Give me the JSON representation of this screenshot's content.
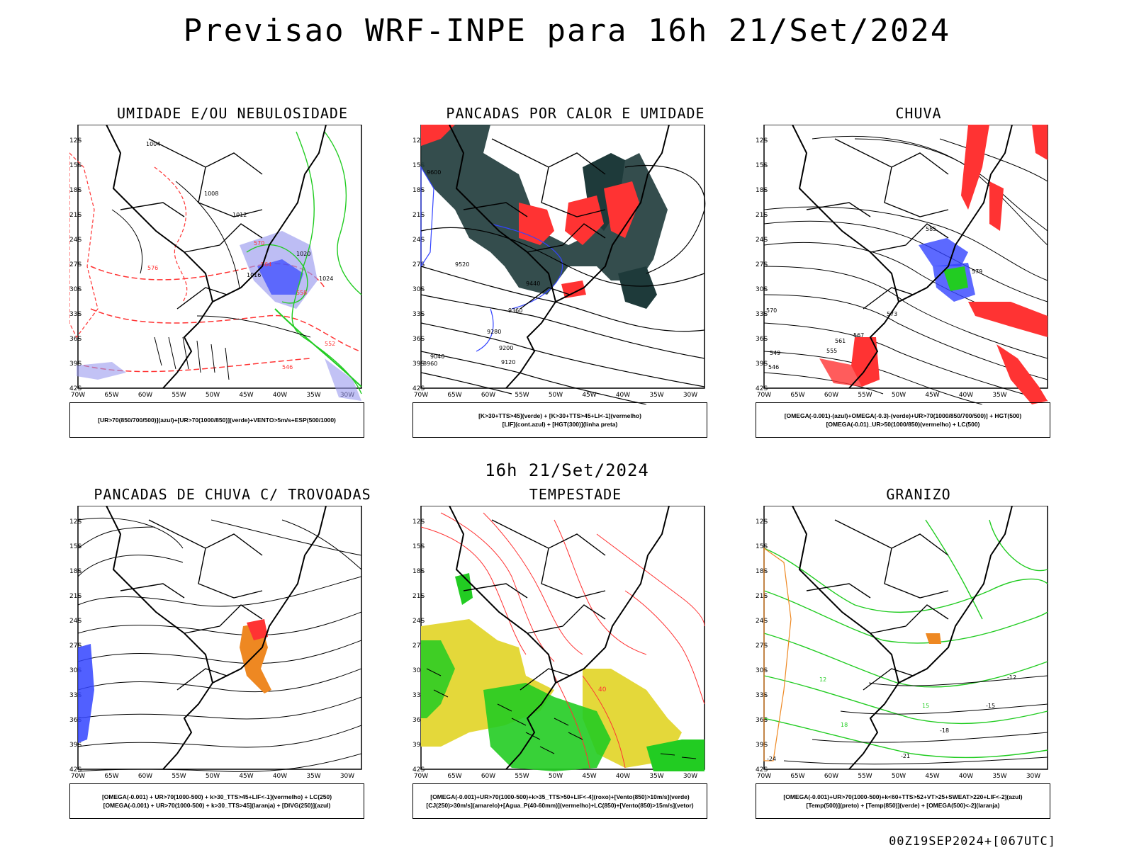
{
  "header": {
    "title": "Previsao WRF-INPE  para 16h 21/Set/2024"
  },
  "middle_label": "16h 21/Set/2024",
  "footer": "00Z19SEP2024+[067UTC]",
  "axes": {
    "lat_labels": [
      "12S",
      "15S",
      "18S",
      "21S",
      "24S",
      "27S",
      "30S",
      "33S",
      "36S",
      "39S",
      "42S"
    ],
    "lon_labels": [
      "70W",
      "65W",
      "60W",
      "55W",
      "50W",
      "45W",
      "40W",
      "35W",
      "30W"
    ]
  },
  "panels": [
    {
      "title": "UMIDADE E/OU NEBULOSIDADE",
      "legend": [
        "[UR>70(850/700/500)](azul)+[UR>70(1000/850)](verde)+VENTO>5m/s+ESP(500/1000)"
      ],
      "labels": [
        "1004",
        "1008",
        "1012",
        "1016",
        "1020",
        "1024",
        "570",
        "576",
        "552",
        "558",
        "564",
        "546"
      ]
    },
    {
      "title": "PANCADAS POR CALOR E UMIDADE",
      "legend": [
        "[K>30+TTS>45](verde) + [K>30+TTS>45+LI<-1](vermelho)",
        "[LIF](cont.azul) + [HGT(300)](linha preta)"
      ],
      "labels": [
        "9600",
        "9520",
        "9440",
        "9360",
        "9280",
        "9200",
        "9120",
        "9040",
        "8960"
      ]
    },
    {
      "title": "CHUVA",
      "legend": [
        "[OMEGA(-0.001)-(azul)+OMEGA(-0.3)-(verde)+UR>70(1000/850/700/500)] + HGT(500)",
        "[OMEGA(-0.01)_UR>50(1000/850)(vermelho) + LC(500)"
      ],
      "labels": [
        "585",
        "579",
        "573",
        "567",
        "561",
        "555",
        "549",
        "546",
        "570"
      ]
    },
    {
      "title": "PANCADAS DE CHUVA C/ TROVOADAS",
      "legend": [
        "[OMEGA(-0.001) + UR>70(1000-500) + k>30_TTS>45+LIF<-1](vermelho) + LC(250)",
        "[OMEGA(-0.001) + UR>70(1000-500) + k>30_TTS>45](laranja) + [DIVG(250)](azul)"
      ],
      "labels": []
    },
    {
      "title": "TEMPESTADE",
      "legend": [
        "[OMEGA(-0.001)+UR>70(1000-500)+k>35_TTS>50+LIF<-4](roxo)+[Vento(850)>10m/s](verde)",
        "[CJ(250)>30m/s](amarelo)+[Agua_P(40-60mm)](vermelho)+LC(850)+[Vento(850)>15m/s](vetor)"
      ],
      "labels": [
        "40"
      ]
    },
    {
      "title": "GRANIZO",
      "legend": [
        "[OMEGA(-0.001)+UR>70(1000-500)+k<60+TTS>52+VT>25+SWEAT>220+LIF<-2](azul)",
        "[Temp(500)](preto) + [Temp(850)](verde) + [OMEGA(500)<-2](laranja)"
      ],
      "labels": [
        "-12",
        "-15",
        "-18",
        "-21",
        "-24",
        "12",
        "15",
        "18"
      ]
    }
  ],
  "colors": {
    "red": "#ff3333",
    "green": "#22cc22",
    "blue": "#3344ff",
    "lavender": "#9999ee",
    "darkteal": "#1e3a3a",
    "yellow": "#e4d83a",
    "orange": "#ee8822"
  }
}
